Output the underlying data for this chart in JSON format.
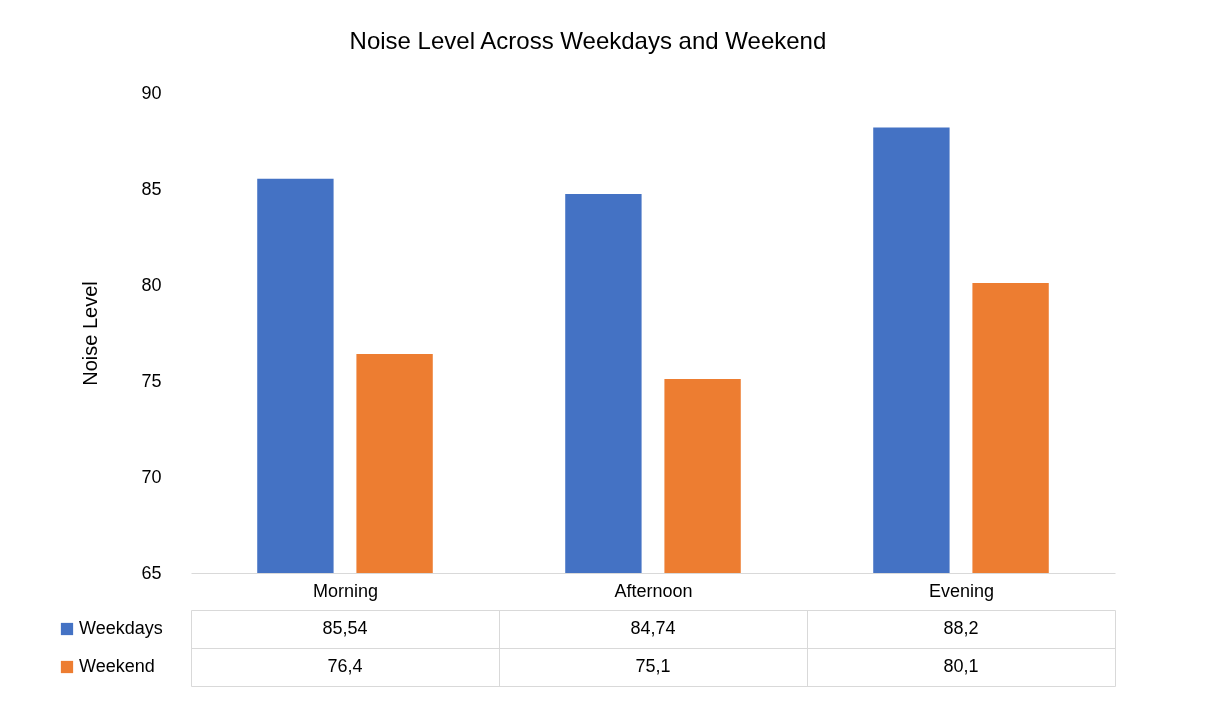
{
  "chart_data": {
    "type": "bar",
    "title": "Noise Level Across Weekdays and Weekend",
    "ylabel": "Noise Level",
    "categories": [
      "Morning",
      "Afternoon",
      "Evening"
    ],
    "series": [
      {
        "name": "Weekdays",
        "color": "#4472c4",
        "values": [
          85.54,
          84.74,
          88.2
        ],
        "value_labels": [
          "85,54",
          "84,74",
          "88,2"
        ]
      },
      {
        "name": "Weekend",
        "color": "#ed7d31",
        "values": [
          76.4,
          75.1,
          80.1
        ],
        "value_labels": [
          "76,4",
          "75,1",
          "80,1"
        ]
      }
    ],
    "ylim": [
      65,
      90
    ],
    "yticks": [
      65,
      70,
      75,
      80,
      85,
      90
    ],
    "grid": false,
    "legend": "bottom left"
  }
}
